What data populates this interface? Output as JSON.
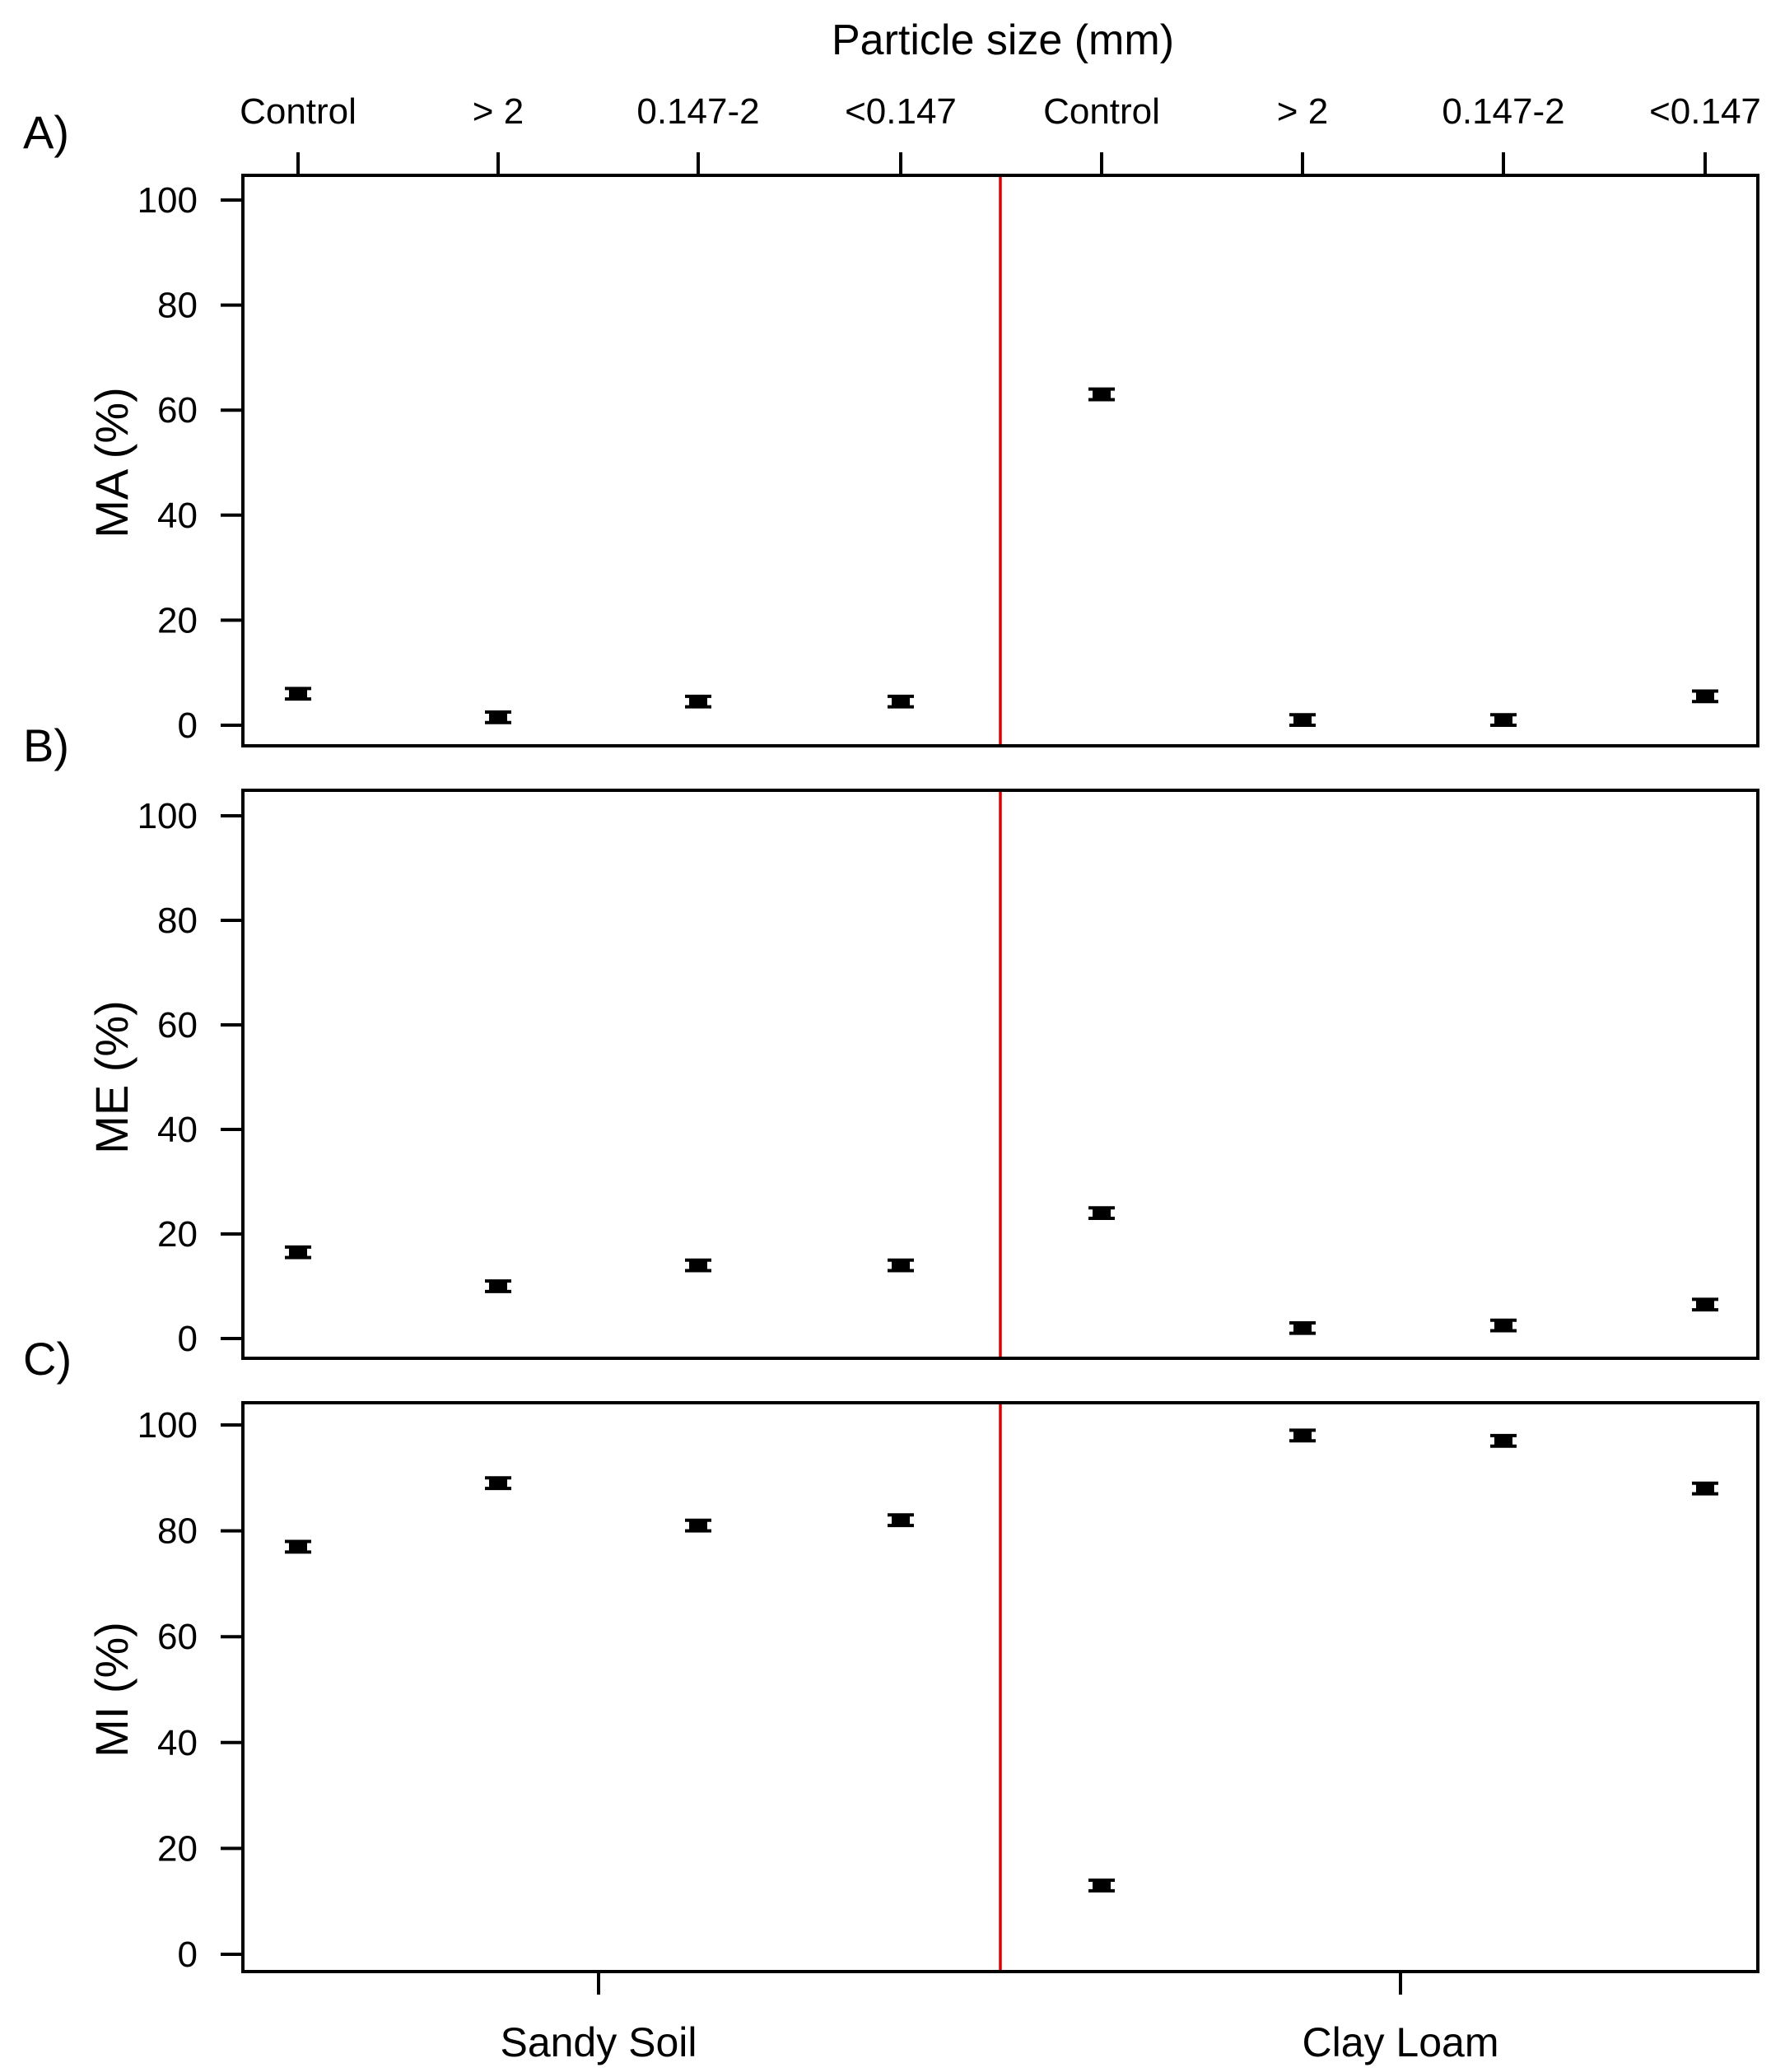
{
  "chart_data": {
    "type": "scatter",
    "top_axis_title": "Particle size (mm)",
    "categories": [
      "Control",
      "> 2",
      "0.147-2",
      "<0.147",
      "Control",
      "> 2",
      "0.147-2",
      "<0.147"
    ],
    "groups": [
      "Sandy Soil",
      "Clay Loam"
    ],
    "separator_color": "#e00000",
    "marker_color": "#000000",
    "panels": [
      {
        "letter": "A)",
        "ylabel": "MA (%)",
        "ylim": [
          0,
          100
        ],
        "yticks": [
          "0",
          "20",
          "40",
          "60",
          "80",
          "100"
        ],
        "values": [
          6,
          1.5,
          4.5,
          4.5,
          63,
          1,
          1,
          5.5
        ],
        "errors": [
          1,
          1,
          1,
          1,
          1,
          1,
          1,
          1
        ]
      },
      {
        "letter": "B)",
        "ylabel": "ME (%)",
        "ylim": [
          0,
          100
        ],
        "yticks": [
          "0",
          "20",
          "40",
          "60",
          "80",
          "100"
        ],
        "values": [
          16.5,
          10,
          14,
          14,
          24,
          2,
          2.5,
          6.5
        ],
        "errors": [
          1,
          1,
          1,
          1,
          1,
          1,
          1,
          1
        ]
      },
      {
        "letter": "C)",
        "ylabel": "MI (%)",
        "ylim": [
          0,
          100
        ],
        "yticks": [
          "0",
          "20",
          "40",
          "60",
          "80",
          "100"
        ],
        "values": [
          77,
          89,
          81,
          82,
          13,
          98,
          97,
          88
        ],
        "errors": [
          1,
          1,
          1,
          1,
          1,
          1,
          1,
          1
        ]
      }
    ]
  }
}
